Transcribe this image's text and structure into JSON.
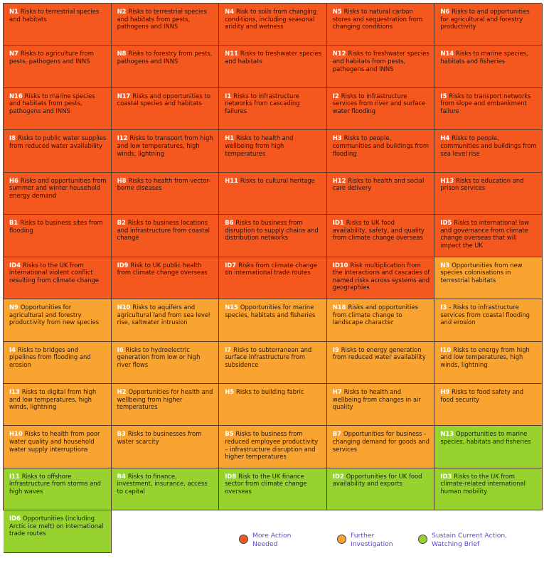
{
  "cells": [
    {
      "code": "N1",
      "text": "Risks to terrestrial species and habitats",
      "level": "red"
    },
    {
      "code": "N2",
      "text": "Risks to terrestrial species and habitats from pests, pathogens and INNS",
      "level": "red"
    },
    {
      "code": "N4",
      "text": "Risk to soils from changing conditions, including seasonal aridity and wetness",
      "level": "red"
    },
    {
      "code": "N5",
      "text": "Risks to natural carbon stores and sequestration from changing conditions",
      "level": "red"
    },
    {
      "code": "N6",
      "text": "Risks to and opportunities for agricultural and forestry productivity",
      "level": "red"
    },
    {
      "code": "N7",
      "text": "Risks to agriculture from pests, pathogens and INNS",
      "level": "red"
    },
    {
      "code": "N8",
      "text": "Risks to forestry from pests, pathogens and INNS",
      "level": "red"
    },
    {
      "code": "N11",
      "text": "Risks to freshwater species and habitats",
      "level": "red"
    },
    {
      "code": "N12",
      "text": "Risks to freshwater species and habitats from pests, pathogens and INNS",
      "level": "red"
    },
    {
      "code": "N14",
      "text": "Risks to marine species, habitats and fisheries",
      "level": "red"
    },
    {
      "code": "N16",
      "text": "Risks to marine species and habitats from pests, pathogens and INNS",
      "level": "red"
    },
    {
      "code": "N17",
      "text": "Risks and opportunities to coastal species and habitats",
      "level": "red"
    },
    {
      "code": "I1",
      "text": "Risks to infrastructure networks from cascading failures",
      "level": "red"
    },
    {
      "code": "I2",
      "text": "Risks to infrastructure services from river and surface water flooding",
      "level": "red"
    },
    {
      "code": "I5",
      "text": "Risks to transport networks from slope and embankment failure",
      "level": "red"
    },
    {
      "code": "I8",
      "text": "Risks to public water supplies from reduced water availability",
      "level": "red"
    },
    {
      "code": "I12",
      "text": "Risks to transport from high and low temperatures, high winds, lightning",
      "level": "red"
    },
    {
      "code": "H1",
      "text": "Risks to health and wellbeing from high temperatures",
      "level": "red"
    },
    {
      "code": "H3",
      "text": "Risks to people, communities and buildings from flooding",
      "level": "red"
    },
    {
      "code": "H4",
      "text": "Risks to people, communities and buildings from sea level rise",
      "level": "red"
    },
    {
      "code": "H6",
      "text": "Risks and opportunities from summer and winter household energy demand",
      "level": "red"
    },
    {
      "code": "H8",
      "text": "Risks to health from vector-borne diseases",
      "level": "red"
    },
    {
      "code": "H11",
      "text": "Risks to cultural heritage",
      "level": "red"
    },
    {
      "code": "H12",
      "text": "Risks to health and social care delivery",
      "level": "red"
    },
    {
      "code": "H13",
      "text": "Risks to education and prison services",
      "level": "red"
    },
    {
      "code": "B1",
      "text": "Risks to business sites from flooding",
      "level": "red"
    },
    {
      "code": "B2",
      "text": "Risks to business locations and infrastructure from coastal change",
      "level": "red"
    },
    {
      "code": "B6",
      "text": "Risks to business from disruption to supply chains and distribution networks",
      "level": "red"
    },
    {
      "code": "ID1",
      "text": "Risks to UK food availability, safety, and quality from climate change overseas",
      "level": "red"
    },
    {
      "code": "ID5",
      "text": "Risks to international law and governance from climate change overseas that will impact the UK",
      "level": "red"
    },
    {
      "code": "ID4",
      "text": "Risks to the UK from international violent conflict resulting from climate change",
      "level": "red"
    },
    {
      "code": "ID9",
      "text": "Risk to UK public health from climate change overseas",
      "level": "red"
    },
    {
      "code": "ID7",
      "text": "Risks from climate change on international trade routes",
      "level": "red"
    },
    {
      "code": "ID10",
      "text": "Risk multiplication from the interactions and cascades of named risks across systems and geographies",
      "level": "red"
    },
    {
      "code": "N3",
      "text": "Opportunities from new species colonisations in terrestrial habitats",
      "level": "orange"
    },
    {
      "code": "N9",
      "text": "Opportunities for agricultural and forestry productivity from new species",
      "level": "orange"
    },
    {
      "code": "N10",
      "text": "Risks to aquifers and agricultural land from sea level rise, saltwater intrusion",
      "level": "orange"
    },
    {
      "code": "N15",
      "text": "Opportunities for marine species, habitats and fisheries",
      "level": "orange"
    },
    {
      "code": "N18",
      "text": "Risks and opportunities from climate change to landscape character",
      "level": "orange"
    },
    {
      "code": "I3",
      "text": "- Risks to infrastructure services from coastal flooding and erosion",
      "level": "orange"
    },
    {
      "code": "I4",
      "text": "Risks to bridges and pipelines from flooding and erosion",
      "level": "orange"
    },
    {
      "code": "I6",
      "text": "Risks to hydroelectric generation from low or high river flows",
      "level": "orange"
    },
    {
      "code": "I7",
      "text": "Risks to subterranean and surface infrastructure from subsidence",
      "level": "orange"
    },
    {
      "code": "I9",
      "text": "Risks to energy generation from reduced water availability",
      "level": "orange"
    },
    {
      "code": "I10",
      "text": "Risks to energy from high and low temperatures, high winds, lightning",
      "level": "orange"
    },
    {
      "code": "I13",
      "text": "Risks to digital from high and low temperatures, high winds, lightning",
      "level": "orange"
    },
    {
      "code": "H2",
      "text": "Opportunities for health and wellbeing from higher temperatures",
      "level": "orange"
    },
    {
      "code": "H5",
      "text": "Risks to building fabric",
      "level": "orange"
    },
    {
      "code": "H7",
      "text": "Risks to health and wellbeing from changes in air quality",
      "level": "orange"
    },
    {
      "code": "H9",
      "text": "Risks to food safety and food security",
      "level": "orange"
    },
    {
      "code": "H10",
      "text": "Risks to health from poor water quality and household water supply interruptions",
      "level": "orange"
    },
    {
      "code": "B3",
      "text": "Risks to businesses from water scarcity",
      "level": "orange"
    },
    {
      "code": "B5",
      "text": "Risks to business from reduced employee productivity – infrastructure disruption and higher temperatures",
      "level": "orange"
    },
    {
      "code": "B7",
      "text": "Opportunities for business - changing demand for goods and services",
      "level": "orange"
    },
    {
      "code": "N13",
      "text": "Opportunities to marine species, habitats and fisheries",
      "level": "green"
    },
    {
      "code": "I11",
      "text": "Risks to offshore infrastructure from storms and high waves",
      "level": "green"
    },
    {
      "code": "B4",
      "text": "Risks to finance, investment, insurance, access to capital",
      "level": "green"
    },
    {
      "code": "ID8",
      "text": "Risk to the UK finance sector from climate change overseas",
      "level": "green"
    },
    {
      "code": "ID2",
      "text": "Opportunities for UK food availability and exports",
      "level": "green"
    },
    {
      "code": "ID3",
      "text": "Risks to the UK from climate-related international human mobility",
      "level": "green"
    },
    {
      "code": "ID6",
      "text": "Opportunities (including Arctic ice melt) on international trade routes",
      "level": "green"
    }
  ],
  "legend": [
    {
      "label": "More Action Needed",
      "level": "red",
      "color": "#f5581f"
    },
    {
      "label": "Further Investigation",
      "level": "orange",
      "color": "#f9a330"
    },
    {
      "label": "Sustain Current Action, Watching Brief",
      "level": "green",
      "color": "#97d22e"
    }
  ],
  "colors": {
    "red": "#f5581f",
    "orange": "#f9a330",
    "green": "#97d22e",
    "legend_text": "#5b4bd8"
  }
}
